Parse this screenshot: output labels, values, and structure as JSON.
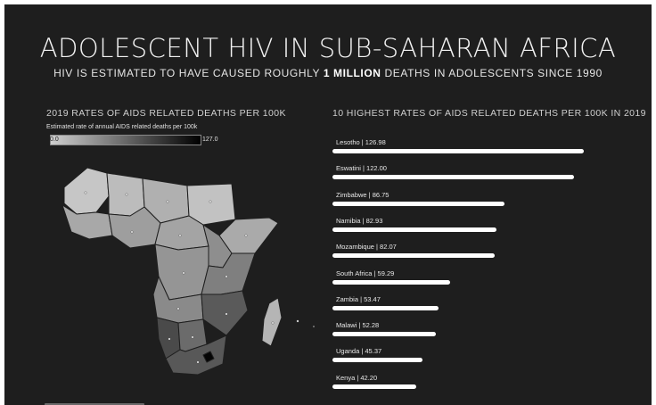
{
  "header": {
    "title": "ADOLESCENT HIV IN SUB-SAHARAN AFRICA",
    "subtitle_prefix": "HIV IS ESTIMATED TO HAVE CAUSED ROUGHLY ",
    "subtitle_bold": "1 MILLION",
    "subtitle_suffix": " DEATHS IN ADOLESCENTS SINCE 1990"
  },
  "map_section": {
    "title": "2019 RATES OF AIDS RELATED DEATHS PER 100K",
    "legend_title": "Estimated rate of annual AIDS related deaths per 100k",
    "legend_min": "0.0",
    "legend_max": "127.0",
    "colors": {
      "low": "#cfcfcf",
      "high": "#000000",
      "border": "#1e1e1e"
    }
  },
  "bar_section": {
    "title": "10 HIGHEST RATES OF AIDS RELATED DEATHS PER 100K IN 2019"
  },
  "chart_data": {
    "type": "bar",
    "orientation": "horizontal",
    "title": "10 HIGHEST RATES OF AIDS RELATED DEATHS PER 100K IN 2019",
    "categories": [
      "Lesotho",
      "Eswatini",
      "Zimbabwe",
      "Namibia",
      "Mozambique",
      "South Africa",
      "Zambia",
      "Malawi",
      "Uganda",
      "Kenya"
    ],
    "values": [
      126.98,
      122.0,
      86.75,
      82.93,
      82.07,
      59.29,
      53.47,
      52.28,
      45.37,
      42.2
    ],
    "labels": [
      "Lesotho | 126.98",
      "Eswatini | 122.00",
      "Zimbabwe | 86.75",
      "Namibia | 82.93",
      "Mozambique | 82.07",
      "South Africa | 59.29",
      "Zambia | 53.47",
      "Malawi | 52.28",
      "Uganda | 45.37",
      "Kenya | 42.20"
    ],
    "xlim": [
      0,
      127
    ],
    "bar_color": "#ffffff"
  }
}
